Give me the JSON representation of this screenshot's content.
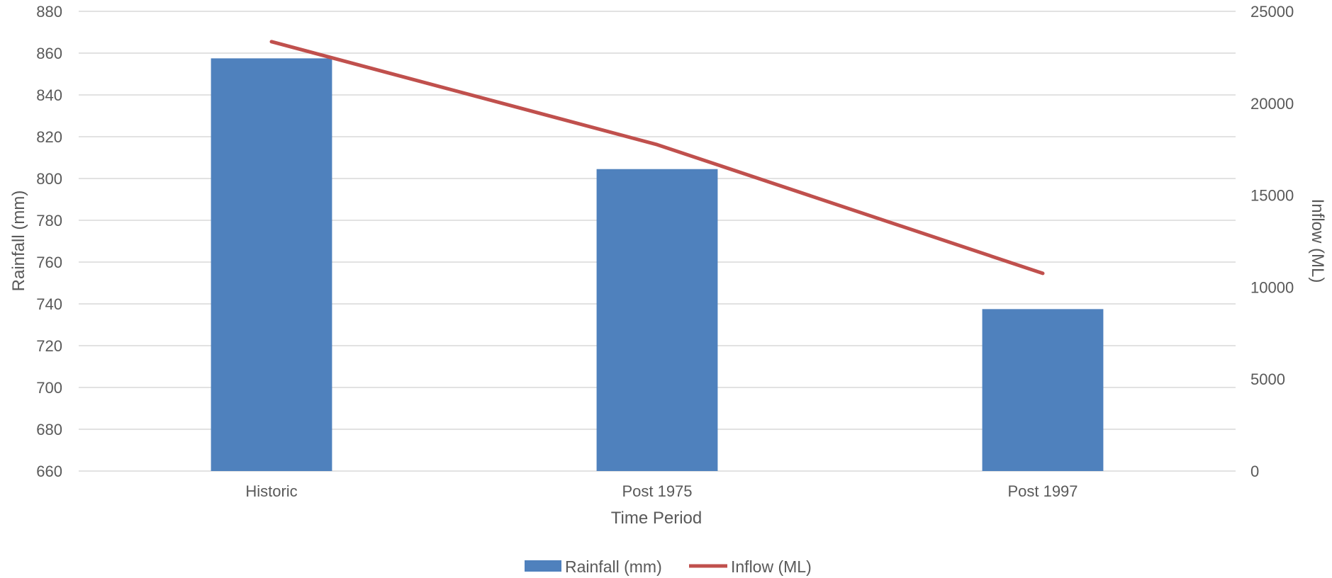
{
  "chart_data": {
    "type": "bar+line",
    "title": "",
    "categories": [
      "Historic",
      "Post 1975",
      "Post 1997"
    ],
    "xlabel": "Time Period",
    "ylabel": "Rainfall (mm)",
    "y2label": "Inflow (ML)",
    "ylim": [
      660,
      880
    ],
    "yticks": [
      "660",
      "680",
      "700",
      "720",
      "740",
      "760",
      "780",
      "800",
      "820",
      "840",
      "860",
      "880"
    ],
    "y2lim": [
      0,
      25000
    ],
    "y2ticks": [
      "0",
      "5000",
      "10000",
      "15000",
      "20000",
      "25000"
    ],
    "series": [
      {
        "name": "Rainfall (mm)",
        "type": "bar",
        "axis": "left",
        "color": "#4f81bd",
        "values": [
          857.5,
          804.5,
          737.5
        ]
      },
      {
        "name": "Inflow (ML)",
        "type": "line",
        "axis": "right",
        "color": "#c0504d",
        "values": [
          23350,
          17750,
          10750
        ]
      }
    ],
    "grid": true,
    "legend": "bottom"
  }
}
